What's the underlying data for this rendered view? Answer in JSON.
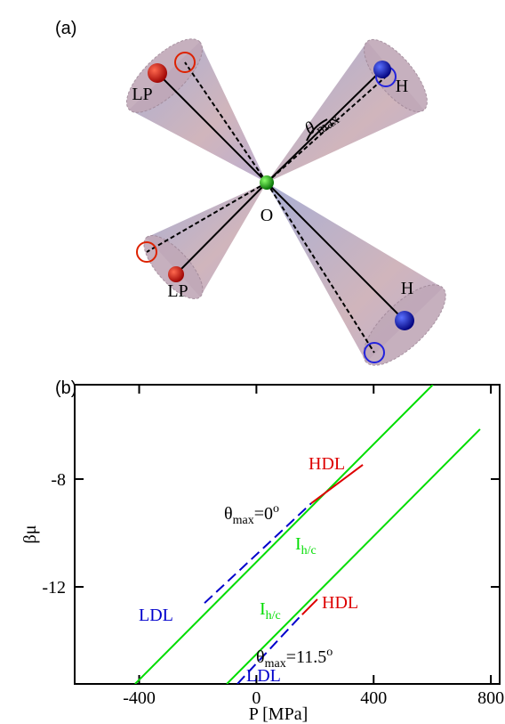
{
  "diagram": {
    "panel_label": "(a)",
    "labels": [
      "LP",
      "H",
      "O",
      "LP",
      "H"
    ],
    "angle": {
      "text": "θ",
      "sub": "max"
    }
  },
  "chart_data": {
    "type": "line",
    "panel_label": "(b)",
    "x_label": "P [MPa]",
    "y_label": "βμ",
    "xlim": [
      -620,
      830
    ],
    "ylim": [
      -15.6,
      -4.5
    ],
    "xticks": [
      -400,
      0,
      400,
      800
    ],
    "yticks": [
      -12,
      -8
    ],
    "series": [
      {
        "color": "#00dd00",
        "style": "solid",
        "x": [
          -414,
          602
        ],
        "values": [
          -15.6,
          -4.5
        ]
      },
      {
        "color": "#00dd00",
        "style": "solid",
        "x": [
          -101,
          763
        ],
        "values": [
          -15.6,
          -6.15
        ]
      },
      {
        "color": "#0000cc",
        "style": "dashed",
        "x": [
          -177,
          187
        ],
        "values": [
          -12.6,
          -8.9
        ]
      },
      {
        "color": "#dd0000",
        "style": "solid",
        "x": [
          187,
          363
        ],
        "values": [
          -8.9,
          -7.47
        ]
      },
      {
        "color": "#0000cc",
        "style": "dashed",
        "x": [
          -65,
          150
        ],
        "values": [
          -15.6,
          -13.09
        ]
      },
      {
        "color": "#dd0000",
        "style": "solid",
        "x": [
          156,
          208
        ],
        "values": [
          -13.03,
          -12.46
        ]
      }
    ],
    "annotations": [
      {
        "text": "HDL",
        "color": "#dd0000"
      },
      {
        "text": "θ",
        "sub": "max",
        "rest": "=0",
        "sup": "o",
        "color": "#000000"
      },
      {
        "text": "I",
        "sub": "h/c",
        "color": "#00dd00"
      },
      {
        "text": "LDL",
        "color": "#0000cc"
      },
      {
        "text": "I",
        "sub": "h/c",
        "color": "#00dd00"
      },
      {
        "text": "HDL",
        "color": "#dd0000"
      },
      {
        "text": "θ",
        "sub": "max",
        "rest": "=11.5",
        "sup": "o",
        "color": "#000000"
      },
      {
        "text": "LDL",
        "color": "#0000cc"
      }
    ]
  }
}
